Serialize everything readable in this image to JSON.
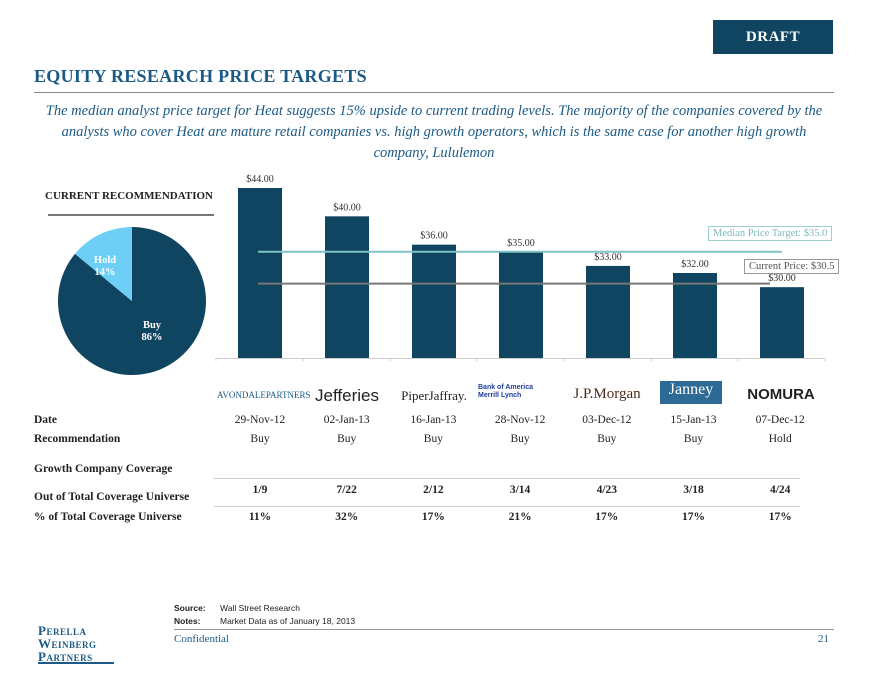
{
  "header": {
    "draft": "DRAFT",
    "title": "EQUITY RESEARCH PRICE TARGETS",
    "subtitle": "The median analyst price target for Heat suggests 15% upside to current trading levels. The majority of  the companies covered by the analysts who cover Heat are mature retail companies vs. high growth operators, which is the same case for another high growth company, Lululemon"
  },
  "chart_data": [
    {
      "type": "pie",
      "title": "CURRENT RECOMMENDATION",
      "slices": [
        {
          "label": "Buy",
          "value": 86,
          "display": "86%",
          "color": "#0f4560"
        },
        {
          "label": "Hold",
          "value": 14,
          "display": "14%",
          "color": "#6dcff6"
        }
      ]
    },
    {
      "type": "bar",
      "categories": [
        "Avondale Partners",
        "Jefferies",
        "Piper Jaffray",
        "Bank of America Merrill Lynch",
        "J.P.Morgan",
        "Janney",
        "Nomura"
      ],
      "values": [
        44,
        40,
        36,
        35,
        33,
        32,
        30
      ],
      "data_labels": [
        "$44.00",
        "$40.00",
        "$36.00",
        "$35.00",
        "$33.00",
        "$32.00",
        "$30.00"
      ],
      "ylim": [
        20,
        44
      ],
      "bar_color": "#0f4560",
      "reference_lines": [
        {
          "label": "Median Price Target: $35.0",
          "value": 35,
          "color": "#7fc4c4"
        },
        {
          "label": "Current Price: $30.5",
          "value": 30.5,
          "color": "#777777"
        }
      ]
    }
  ],
  "logos": [
    "AVONDALEPARTNERS",
    "Jefferies",
    "PiperJaffray.",
    "Bank of America Merrill Lynch",
    "J.P.Morgan",
    "Janney",
    "NOMURA"
  ],
  "table": {
    "date": {
      "label": "Date",
      "values": [
        "29-Nov-12",
        "02-Jan-13",
        "16-Jan-13",
        "28-Nov-12",
        "03-Dec-12",
        "15-Jan-13",
        "07-Dec-12"
      ]
    },
    "recommendation": {
      "label": "Recommendation",
      "values": [
        "Buy",
        "Buy",
        "Buy",
        "Buy",
        "Buy",
        "Buy",
        "Hold"
      ]
    },
    "growth_header": "Growth Company Coverage",
    "out_of": {
      "label": "Out of Total Coverage Universe",
      "values": [
        "1/9",
        "7/22",
        "2/12",
        "3/14",
        "4/23",
        "3/18",
        "4/24"
      ]
    },
    "pct": {
      "label": "% of Total Coverage Universe",
      "values": [
        "11%",
        "32%",
        "17%",
        "21%",
        "17%",
        "17%",
        "17%"
      ]
    }
  },
  "footer": {
    "source_label": "Source:",
    "source": "Wall Street Research",
    "notes_label": "Notes:",
    "notes": "Market Data as of January 18, 2013",
    "confidential": "Confidential",
    "page": "21",
    "logo": "Perella Weinberg Partners"
  }
}
